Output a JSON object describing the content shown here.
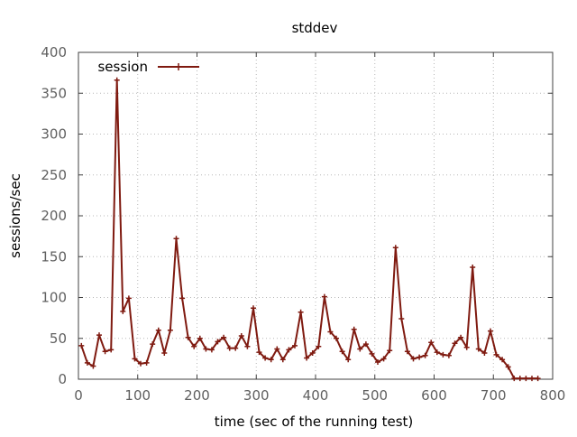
{
  "chart_data": {
    "type": "line",
    "title": "stddev",
    "xlabel": "time (sec of the running test)",
    "ylabel": "sessions/sec",
    "xlim": [
      0,
      800
    ],
    "ylim": [
      0,
      400
    ],
    "x_ticks": [
      0,
      100,
      200,
      300,
      400,
      500,
      600,
      700,
      800
    ],
    "y_ticks": [
      0,
      50,
      100,
      150,
      200,
      250,
      300,
      350,
      400
    ],
    "grid": true,
    "legend_position": "top-left",
    "series": [
      {
        "name": "session",
        "color": "#7f1a10",
        "marker": "plus",
        "x": [
          5,
          15,
          25,
          35,
          45,
          55,
          65,
          75,
          85,
          95,
          105,
          115,
          125,
          135,
          145,
          155,
          165,
          175,
          185,
          195,
          205,
          215,
          225,
          235,
          245,
          255,
          265,
          275,
          285,
          295,
          305,
          315,
          325,
          335,
          345,
          355,
          365,
          375,
          385,
          395,
          405,
          415,
          425,
          435,
          445,
          455,
          465,
          475,
          485,
          495,
          505,
          515,
          525,
          535,
          545,
          555,
          565,
          575,
          585,
          595,
          605,
          615,
          625,
          635,
          645,
          655,
          665,
          675,
          685,
          695,
          705,
          715,
          725,
          735,
          745,
          755,
          765,
          775
        ],
        "y": [
          41,
          20,
          16,
          54,
          34,
          36,
          366,
          83,
          99,
          25,
          19,
          20,
          43,
          60,
          32,
          60,
          172,
          99,
          51,
          40,
          50,
          37,
          36,
          46,
          51,
          38,
          38,
          53,
          40,
          87,
          33,
          26,
          24,
          37,
          24,
          36,
          41,
          82,
          26,
          32,
          40,
          101,
          58,
          50,
          34,
          24,
          61,
          37,
          43,
          31,
          21,
          25,
          35,
          161,
          74,
          34,
          25,
          27,
          29,
          45,
          33,
          30,
          29,
          44,
          51,
          39,
          137,
          37,
          32,
          59,
          30,
          24,
          15,
          1,
          1,
          1,
          1,
          1
        ]
      }
    ]
  },
  "colors": {
    "series": "#7f1a10",
    "grid": "#b8b8b8",
    "axis": "#404040",
    "tick_text": "#606060"
  }
}
